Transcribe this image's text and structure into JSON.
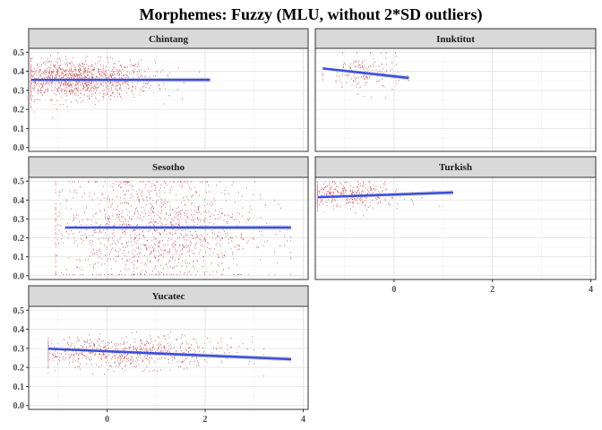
{
  "chart_data": {
    "type": "scatter",
    "title": "Morphemes: Fuzzy (MLU, without 2*SD outliers)",
    "xlabel": "",
    "ylabel": "",
    "xlim": [
      -1.6,
      4.1
    ],
    "ylim": [
      -0.02,
      0.52
    ],
    "x_ticks": [
      "0",
      "2",
      "4"
    ],
    "x_tick_values": [
      0,
      2,
      4
    ],
    "y_ticks": [
      "0.0",
      "0.1",
      "0.2",
      "0.3",
      "0.4",
      "0.5"
    ],
    "y_tick_values": [
      0.0,
      0.1,
      0.2,
      0.3,
      0.4,
      0.5
    ],
    "grid": true,
    "point_color": "#c0282e",
    "line_color": "#3b4fe0",
    "ribbon_color": "#bdbdbd",
    "panels": [
      {
        "name": "Chintang",
        "point_cloud": {
          "x_range": [
            -1.55,
            2.1
          ],
          "x_center": -0.65,
          "y_center": 0.36,
          "y_spread": 0.05,
          "count": 1200
        },
        "regression": {
          "x": [
            -1.55,
            2.1
          ],
          "y": [
            0.355,
            0.355
          ]
        }
      },
      {
        "name": "Inuktitut",
        "point_cloud": {
          "x_range": [
            -1.45,
            0.3
          ],
          "x_center": -0.6,
          "y_center": 0.39,
          "y_spread": 0.05,
          "count": 160
        },
        "regression": {
          "x": [
            -1.45,
            0.3
          ],
          "y": [
            0.415,
            0.365
          ]
        }
      },
      {
        "name": "Sesotho",
        "point_cloud": {
          "x_range": [
            -1.05,
            3.75
          ],
          "x_center": 0.9,
          "y_center": 0.25,
          "y_spread": 0.15,
          "count": 1300
        },
        "regression": {
          "x": [
            -0.85,
            3.75
          ],
          "y": [
            0.255,
            0.255
          ]
        }
      },
      {
        "name": "Turkish",
        "point_cloud": {
          "x_range": [
            -1.55,
            1.2
          ],
          "x_center": -1.0,
          "y_center": 0.43,
          "y_spread": 0.035,
          "count": 400
        },
        "regression": {
          "x": [
            -1.55,
            1.2
          ],
          "y": [
            0.415,
            0.44
          ]
        }
      },
      {
        "name": "Yucatec",
        "point_cloud": {
          "x_range": [
            -1.2,
            3.75
          ],
          "x_center": 0.4,
          "y_center": 0.28,
          "y_spread": 0.04,
          "count": 700
        },
        "regression": {
          "x": [
            -1.2,
            3.75
          ],
          "y": [
            0.298,
            0.243
          ]
        }
      }
    ]
  }
}
